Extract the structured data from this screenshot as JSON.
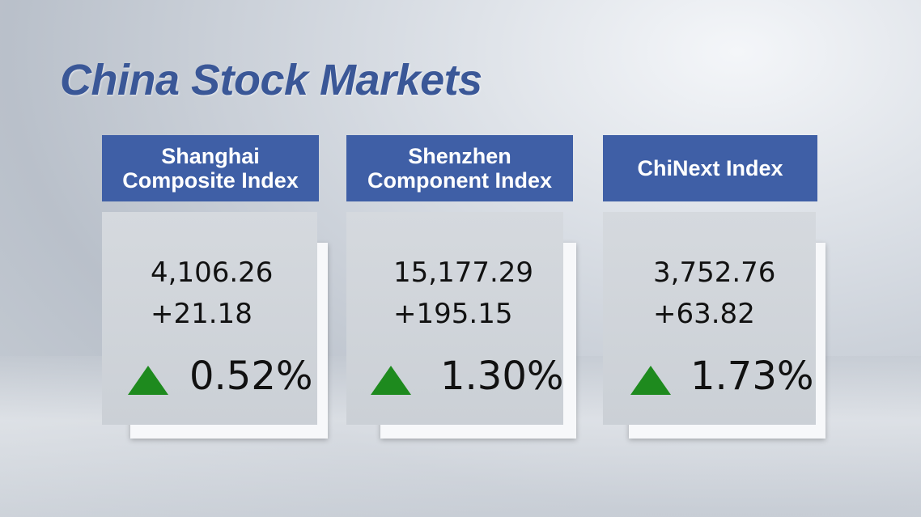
{
  "header": {
    "title": "China Stock Markets"
  },
  "cards": [
    {
      "name_lines": [
        "Shanghai",
        "Composite Index"
      ],
      "value": "4,106.26",
      "change": "+21.18",
      "percent": "0.52%"
    },
    {
      "name_lines": [
        "Shenzhen",
        "Component Index"
      ],
      "value": "15,177.29",
      "change": "+195.15",
      "percent": "1.30%"
    },
    {
      "name_lines": [
        "ChiNext Index"
      ],
      "value": "3,752.76",
      "change": "+63.82",
      "percent": "1.73%"
    }
  ]
}
